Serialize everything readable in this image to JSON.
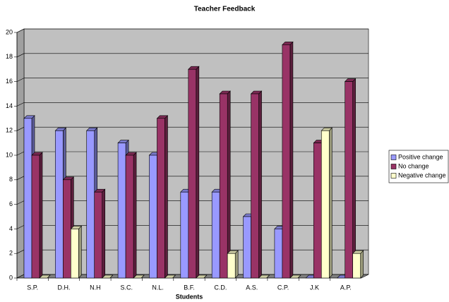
{
  "chart_data": {
    "type": "bar3d",
    "title": "Teacher Feedback",
    "x_label": "Students",
    "categories": [
      "S.P.",
      "D.H.",
      "N.H",
      "S.C.",
      "N.L.",
      "B.F.",
      "C.D.",
      "A.S.",
      "C.P.",
      "J.K",
      "A.P."
    ],
    "series": [
      {
        "name": "Positive change",
        "color": "#9999ff",
        "values": [
          13,
          12,
          12,
          11,
          10,
          7,
          7,
          5,
          4,
          0,
          0
        ]
      },
      {
        "name": "No change",
        "color": "#993366",
        "values": [
          10,
          8,
          7,
          10,
          13,
          17,
          15,
          15,
          19,
          11,
          16
        ]
      },
      {
        "name": "Negative change",
        "color": "#ffffcc",
        "values": [
          0,
          4,
          0,
          0,
          0,
          0,
          2,
          0,
          0,
          12,
          2
        ]
      }
    ],
    "ylim": [
      0,
      20
    ],
    "yticks": [
      0,
      2,
      4,
      6,
      8,
      10,
      12,
      14,
      16,
      18,
      20
    ],
    "grid": true,
    "legend": "right"
  }
}
